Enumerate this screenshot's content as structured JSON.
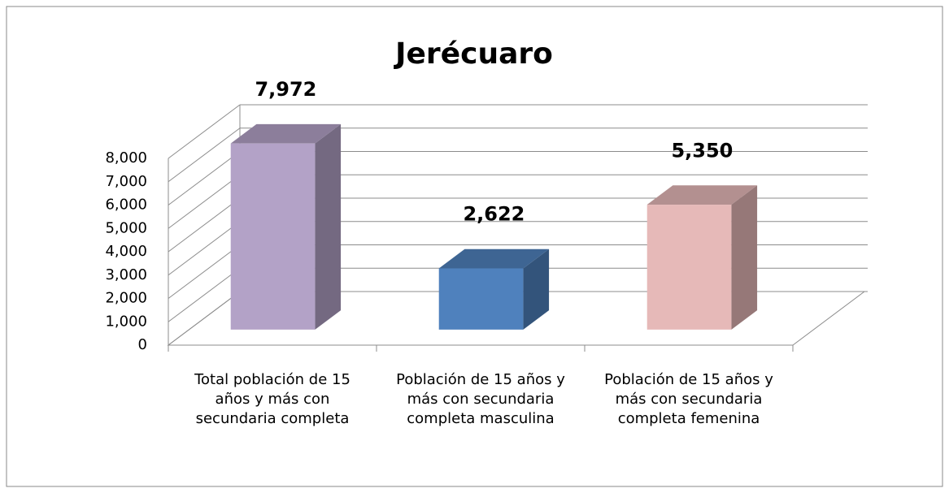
{
  "chart_data": {
    "type": "bar3d",
    "title": "Jerécuaro",
    "categories": [
      "Total población de 15 años y más con secundaria completa",
      "Población de 15 años y más con secundaria completa masculina",
      "Población de 15 años y más con secundaria completa femenina"
    ],
    "values": [
      7972,
      2622,
      5350
    ],
    "value_labels": [
      "7,972",
      "2,622",
      "5,350"
    ],
    "colors": [
      "#b3a2c7",
      "#4f81bd",
      "#e6b9b8"
    ],
    "ylim": [
      0,
      8000
    ],
    "yticks": [
      0,
      {
        "value": 1000,
        "label": "1,000"
      },
      {
        "value": 2000,
        "label": "2,000"
      },
      {
        "value": 3000,
        "label": "3,000"
      },
      {
        "value": 4000,
        "label": "4,000"
      },
      {
        "value": 5000,
        "label": "5,000"
      },
      {
        "value": 6000,
        "label": "6,000"
      },
      {
        "value": 7000,
        "label": "7,000"
      },
      {
        "value": 8000,
        "label": "8,000"
      }
    ],
    "grid": true
  }
}
